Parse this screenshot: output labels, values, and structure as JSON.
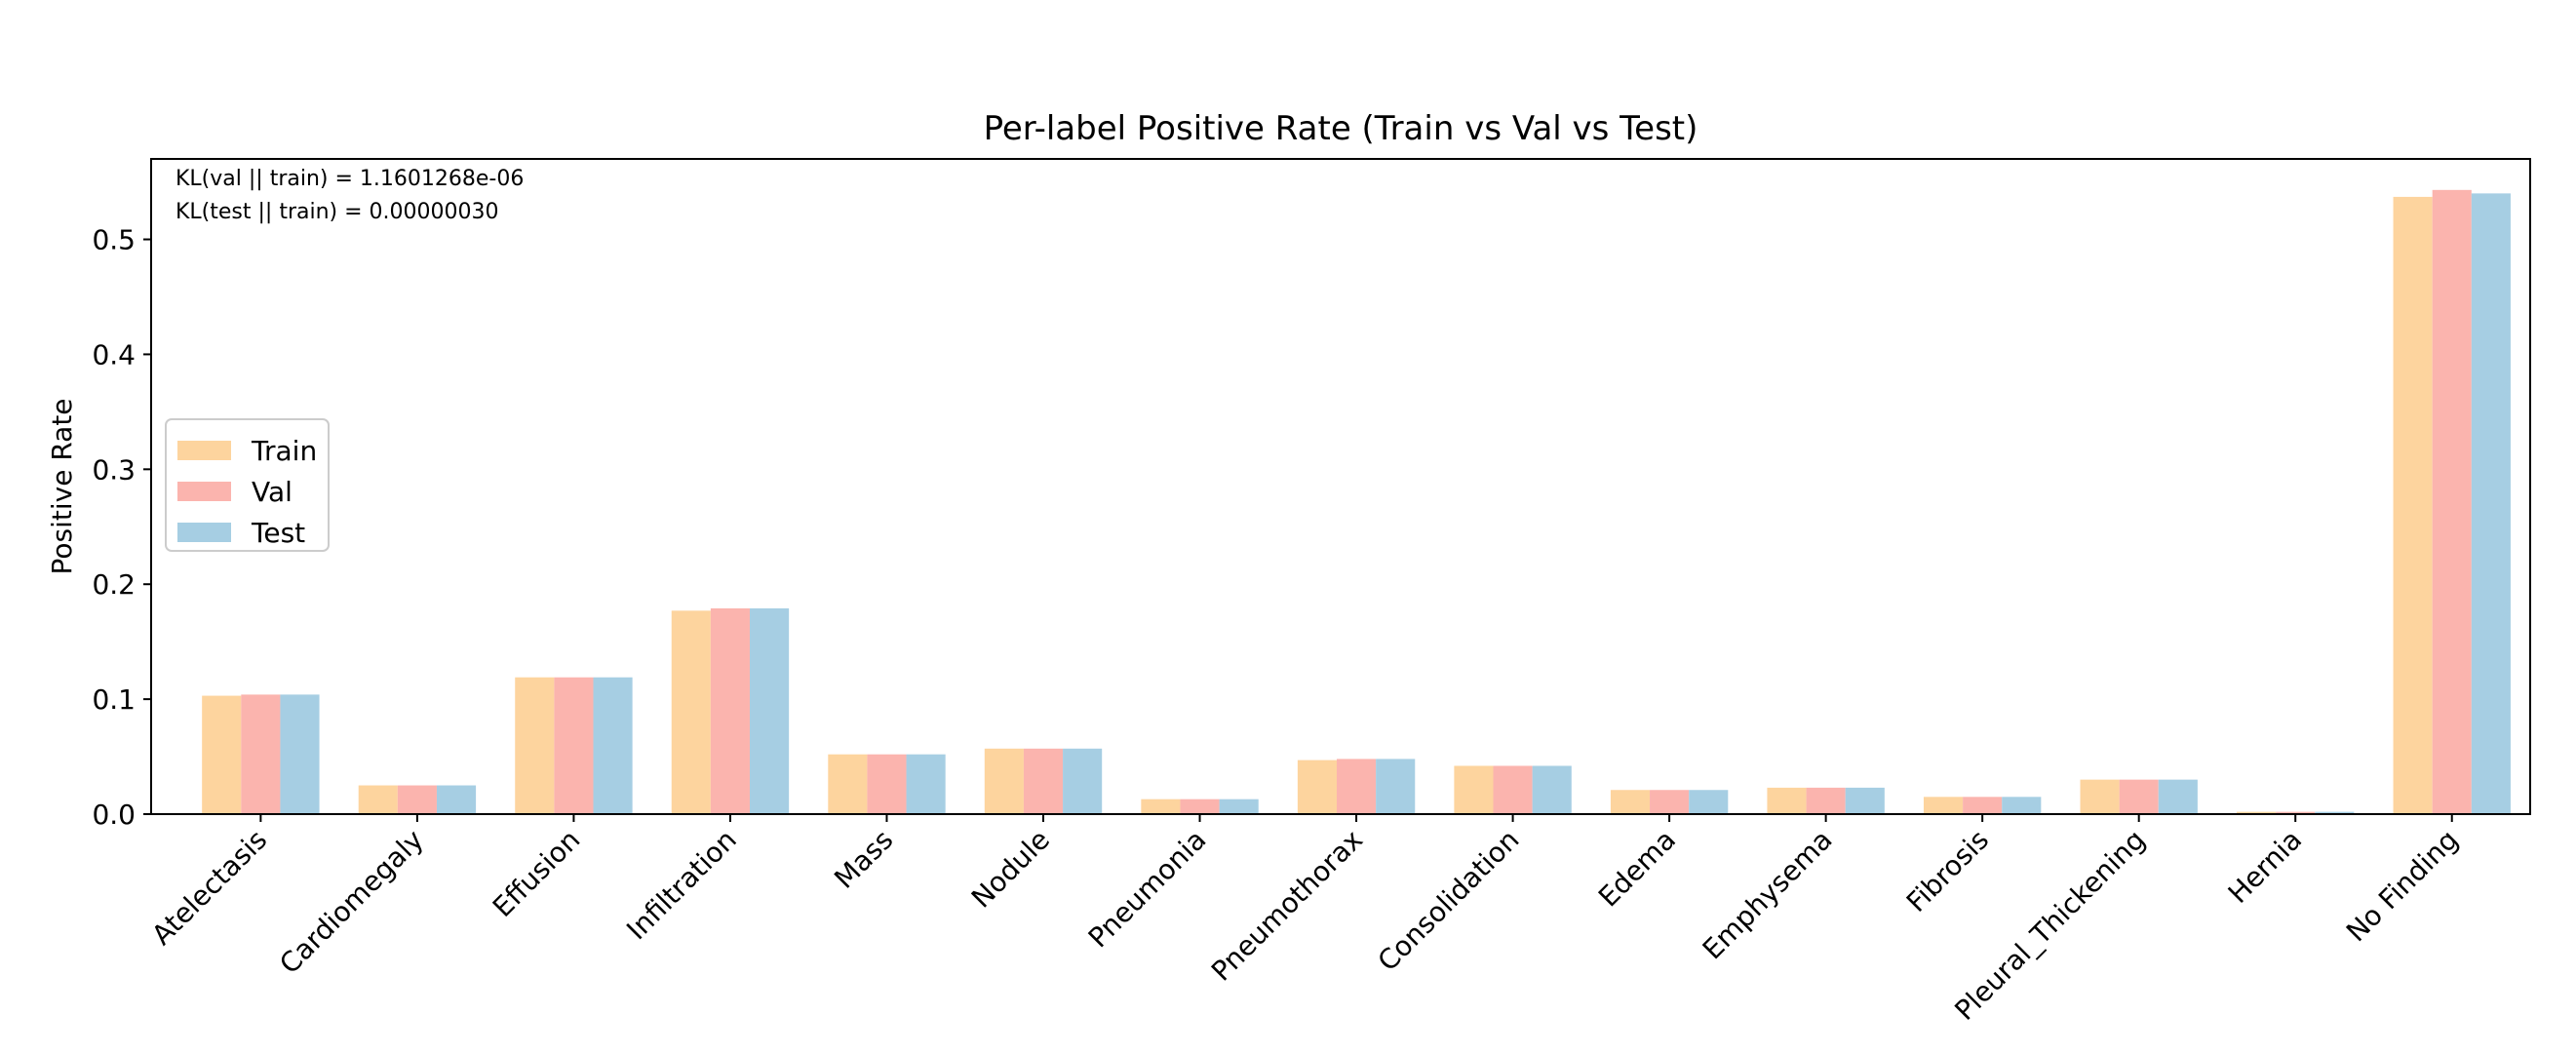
{
  "chart_data": {
    "type": "bar",
    "title": "Per-label Positive Rate (Train vs Val vs Test)",
    "xlabel": "",
    "ylabel": "Positive Rate",
    "ylim": [
      0.0,
      0.57
    ],
    "yticks": [
      "0.0",
      "0.1",
      "0.2",
      "0.3",
      "0.4",
      "0.5"
    ],
    "categories": [
      "Atelectasis",
      "Cardiomegaly",
      "Effusion",
      "Infiltration",
      "Mass",
      "Nodule",
      "Pneumonia",
      "Pneumothorax",
      "Consolidation",
      "Edema",
      "Emphysema",
      "Fibrosis",
      "Pleural_Thickening",
      "Hernia",
      "No Finding"
    ],
    "series": [
      {
        "name": "Train",
        "color": "#fdd49e",
        "values": [
          0.103,
          0.025,
          0.119,
          0.177,
          0.052,
          0.057,
          0.013,
          0.047,
          0.042,
          0.021,
          0.023,
          0.015,
          0.03,
          0.002,
          0.537
        ]
      },
      {
        "name": "Val",
        "color": "#fbb4ae",
        "values": [
          0.104,
          0.025,
          0.119,
          0.179,
          0.052,
          0.057,
          0.013,
          0.048,
          0.042,
          0.021,
          0.023,
          0.015,
          0.03,
          0.002,
          0.543
        ]
      },
      {
        "name": "Test",
        "color": "#a6cee3",
        "values": [
          0.104,
          0.025,
          0.119,
          0.179,
          0.052,
          0.057,
          0.013,
          0.048,
          0.042,
          0.021,
          0.023,
          0.015,
          0.03,
          0.002,
          0.54
        ]
      }
    ],
    "annotations": [
      "KL(val || train) = 1.1601268e-06",
      "KL(test || train) = 0.00000030"
    ],
    "legend_position": "center-left",
    "grid": false
  }
}
